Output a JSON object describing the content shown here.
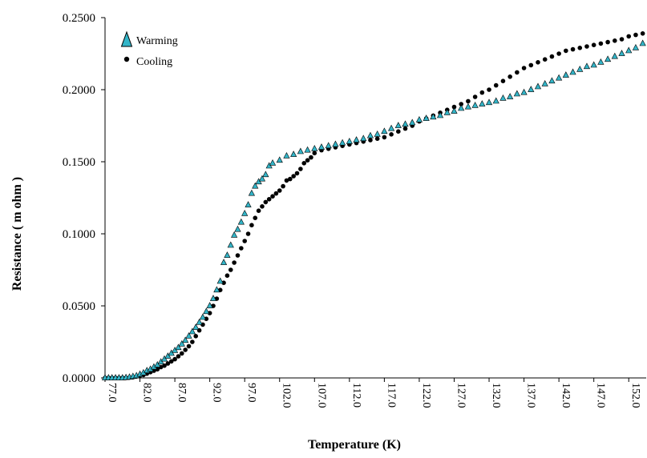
{
  "chart_data": {
    "type": "scatter",
    "xlabel": "Temperature (K)",
    "ylabel": "Resistance ( m ohm )",
    "xlim": [
      77.0,
      154.5
    ],
    "ylim": [
      0.0,
      0.25
    ],
    "y_ticks": [
      "0.0000",
      "0.0500",
      "0.1000",
      "0.1500",
      "0.2000",
      "0.2500"
    ],
    "x_ticks": [
      "77.0",
      "82.0",
      "87.0",
      "92.0",
      "97.0",
      "102.0",
      "107.0",
      "112.0",
      "117.0",
      "122.0",
      "127.0",
      "132.0",
      "137.0",
      "142.0",
      "147.0",
      "152.0"
    ],
    "grid": false,
    "legend_position": "top-left",
    "colors": {
      "warming": "#33B5C8",
      "cooling": "#000000"
    },
    "series": [
      {
        "name": "Warming",
        "marker": "triangle",
        "x": [
          77.0,
          77.5,
          78.0,
          78.5,
          79.0,
          79.5,
          80.0,
          80.5,
          81.0,
          81.5,
          82.0,
          82.5,
          83.0,
          83.5,
          84.0,
          84.5,
          85.0,
          85.5,
          86.0,
          86.5,
          87.0,
          87.5,
          88.0,
          88.5,
          89.0,
          89.5,
          90.0,
          90.5,
          91.0,
          91.5,
          92.0,
          92.5,
          93.0,
          93.5,
          94.0,
          94.5,
          95.0,
          95.5,
          96.0,
          96.5,
          97.0,
          97.5,
          98.0,
          98.5,
          99.0,
          99.5,
          100.0,
          100.5,
          101.0,
          102.0,
          103.0,
          104.0,
          105.0,
          106.0,
          107.0,
          108.0,
          109.0,
          110.0,
          111.0,
          112.0,
          113.0,
          114.0,
          115.0,
          116.0,
          117.0,
          118.0,
          119.0,
          120.0,
          121.0,
          122.0,
          123.0,
          124.0,
          125.0,
          126.0,
          127.0,
          128.0,
          129.0,
          130.0,
          131.0,
          132.0,
          133.0,
          134.0,
          135.0,
          136.0,
          137.0,
          138.0,
          139.0,
          140.0,
          141.0,
          142.0,
          143.0,
          144.0,
          145.0,
          146.0,
          147.0,
          148.0,
          149.0,
          150.0,
          151.0,
          152.0,
          153.0,
          154.0
        ],
        "y": [
          0.0,
          0.0,
          0.0,
          0.0,
          0.0,
          0.0,
          0.0002,
          0.0005,
          0.001,
          0.0015,
          0.0025,
          0.0035,
          0.005,
          0.006,
          0.0075,
          0.009,
          0.011,
          0.013,
          0.015,
          0.017,
          0.019,
          0.021,
          0.0235,
          0.026,
          0.029,
          0.032,
          0.035,
          0.0385,
          0.042,
          0.046,
          0.05,
          0.055,
          0.061,
          0.067,
          0.08,
          0.085,
          0.092,
          0.099,
          0.103,
          0.108,
          0.114,
          0.12,
          0.128,
          0.133,
          0.136,
          0.138,
          0.141,
          0.147,
          0.149,
          0.151,
          0.154,
          0.155,
          0.157,
          0.158,
          0.159,
          0.16,
          0.161,
          0.162,
          0.163,
          0.164,
          0.165,
          0.166,
          0.168,
          0.169,
          0.171,
          0.173,
          0.175,
          0.176,
          0.177,
          0.179,
          0.18,
          0.181,
          0.182,
          0.184,
          0.185,
          0.187,
          0.188,
          0.189,
          0.19,
          0.191,
          0.192,
          0.194,
          0.195,
          0.197,
          0.198,
          0.2,
          0.202,
          0.204,
          0.206,
          0.208,
          0.21,
          0.212,
          0.214,
          0.216,
          0.217,
          0.219,
          0.221,
          0.223,
          0.225,
          0.227,
          0.229,
          0.232
        ]
      },
      {
        "name": "Cooling",
        "marker": "circle",
        "x": [
          77.0,
          77.5,
          78.0,
          78.5,
          79.0,
          79.5,
          80.0,
          80.5,
          81.0,
          81.5,
          82.0,
          82.5,
          83.0,
          83.5,
          84.0,
          84.5,
          85.0,
          85.5,
          86.0,
          86.5,
          87.0,
          87.5,
          88.0,
          88.5,
          89.0,
          89.5,
          90.0,
          90.5,
          91.0,
          91.5,
          92.0,
          92.5,
          93.0,
          93.5,
          94.0,
          94.5,
          95.0,
          95.5,
          96.0,
          96.5,
          97.0,
          97.5,
          98.0,
          98.5,
          99.0,
          99.5,
          100.0,
          100.5,
          101.0,
          101.5,
          102.0,
          102.5,
          103.0,
          103.5,
          104.0,
          104.5,
          105.0,
          105.5,
          106.0,
          106.5,
          107.0,
          108.0,
          109.0,
          110.0,
          111.0,
          112.0,
          113.0,
          114.0,
          115.0,
          116.0,
          117.0,
          118.0,
          119.0,
          120.0,
          121.0,
          122.0,
          123.0,
          124.0,
          125.0,
          126.0,
          127.0,
          128.0,
          129.0,
          130.0,
          131.0,
          132.0,
          133.0,
          134.0,
          135.0,
          136.0,
          137.0,
          138.0,
          139.0,
          140.0,
          141.0,
          142.0,
          143.0,
          144.0,
          145.0,
          146.0,
          147.0,
          148.0,
          149.0,
          150.0,
          151.0,
          152.0,
          153.0,
          154.0
        ],
        "y": [
          0.0,
          0.0,
          0.0,
          0.0,
          0.0,
          0.0,
          0.0,
          0.0002,
          0.0005,
          0.001,
          0.0015,
          0.002,
          0.003,
          0.004,
          0.005,
          0.006,
          0.0075,
          0.0085,
          0.01,
          0.0115,
          0.013,
          0.015,
          0.017,
          0.0195,
          0.022,
          0.025,
          0.029,
          0.033,
          0.037,
          0.041,
          0.045,
          0.05,
          0.055,
          0.061,
          0.066,
          0.071,
          0.075,
          0.08,
          0.085,
          0.09,
          0.095,
          0.1,
          0.106,
          0.111,
          0.116,
          0.119,
          0.122,
          0.124,
          0.126,
          0.128,
          0.13,
          0.133,
          0.137,
          0.138,
          0.14,
          0.142,
          0.145,
          0.149,
          0.151,
          0.153,
          0.156,
          0.158,
          0.159,
          0.16,
          0.161,
          0.162,
          0.163,
          0.164,
          0.165,
          0.166,
          0.167,
          0.169,
          0.171,
          0.173,
          0.175,
          0.178,
          0.18,
          0.182,
          0.184,
          0.186,
          0.188,
          0.19,
          0.192,
          0.195,
          0.198,
          0.2,
          0.203,
          0.206,
          0.209,
          0.212,
          0.215,
          0.217,
          0.219,
          0.221,
          0.223,
          0.225,
          0.227,
          0.228,
          0.229,
          0.23,
          0.231,
          0.232,
          0.233,
          0.234,
          0.235,
          0.237,
          0.238,
          0.239
        ]
      }
    ]
  }
}
